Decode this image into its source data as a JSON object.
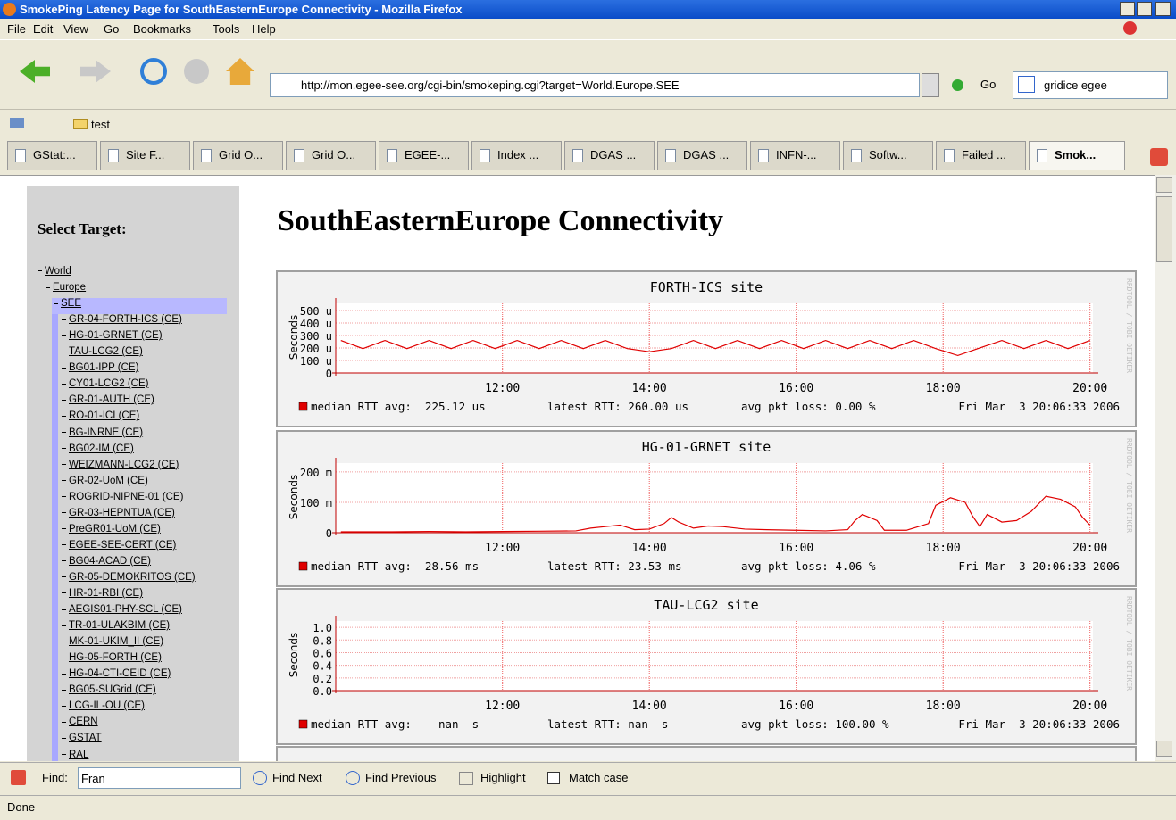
{
  "window": {
    "title": "SmokePing Latency Page for SouthEasternEurope Connectivity - Mozilla Firefox"
  },
  "menu": [
    "File",
    "Edit",
    "View",
    "Go",
    "Bookmarks",
    "Tools",
    "Help"
  ],
  "toolbar": {
    "url": "http://mon.egee-see.org/cgi-bin/smokeping.cgi?target=World.Europe.SEE",
    "go": "Go",
    "search": "gridice egee"
  },
  "bookmarks": [
    "test"
  ],
  "tabs": [
    "GStat:...",
    "Site F...",
    "Grid O...",
    "Grid O...",
    "EGEE-...",
    "Index ...",
    "DGAS ...",
    "DGAS ...",
    "INFN-...",
    "Softw...",
    "Failed ...",
    "Smok..."
  ],
  "sidebar": {
    "heading": "Select Target:",
    "tree": {
      "label": "World",
      "children": [
        {
          "label": "Europe",
          "children": [
            {
              "label": "SEE",
              "children": [
                "GR-04-FORTH-ICS (CE)",
                "HG-01-GRNET (CE)",
                "TAU-LCG2 (CE)",
                "BG01-IPP (CE)",
                "CY01-LCG2 (CE)",
                "GR-01-AUTH (CE)",
                "RO-01-ICI (CE)",
                "BG-INRNE (CE)",
                "BG02-IM (CE)",
                "WEIZMANN-LCG2 (CE)",
                "GR-02-UoM (CE)",
                "ROGRID-NIPNE-01 (CE)",
                "GR-03-HEPNTUA (CE)",
                "PreGR01-UoM (CE)",
                "EGEE-SEE-CERT (CE)",
                "BG04-ACAD (CE)",
                "GR-05-DEMOKRITOS (CE)",
                "HR-01-RBI (CE)",
                "AEGIS01-PHY-SCL (CE)",
                "TR-01-ULAKBIM (CE)",
                "MK-01-UKIM_II (CE)",
                "HG-05-FORTH (CE)",
                "HG-04-CTI-CEID (CE)",
                "BG05-SUGrid (CE)",
                "LCG-IL-OU (CE)",
                "CERN",
                "GSTAT",
                "RAL"
              ]
            }
          ]
        }
      ]
    }
  },
  "content": {
    "heading": "SouthEasternEurope Connectivity",
    "rrd_credit": "RRDTOOL / TOBI OETIKER",
    "graphs": [
      {
        "type": "line",
        "title": "FORTH-ICS site",
        "y_label": "Seconds",
        "grid": true,
        "xlim": [
          9.73,
          20.04
        ],
        "ylim": [
          0,
          557
        ],
        "xticks": [
          {
            "value": 12,
            "label": "12:00"
          },
          {
            "value": 14,
            "label": "14:00"
          },
          {
            "value": 16,
            "label": "16:00"
          },
          {
            "value": 18,
            "label": "18:00"
          },
          {
            "value": 20,
            "label": "20:00"
          }
        ],
        "yticks": [
          0,
          {
            "value": 100,
            "label": "100 u"
          },
          {
            "value": 200,
            "label": "200 u"
          },
          {
            "value": 300,
            "label": "300 u"
          },
          {
            "value": 400,
            "label": "400 u"
          },
          {
            "value": 500,
            "label": "500 u"
          }
        ],
        "x": [
          9.8,
          10.1,
          10.4,
          10.7,
          11.0,
          11.3,
          11.6,
          11.9,
          12.2,
          12.5,
          12.8,
          13.1,
          13.4,
          13.7,
          14.0,
          14.3,
          14.6,
          14.9,
          15.2,
          15.5,
          15.8,
          16.1,
          16.4,
          16.7,
          17.0,
          17.3,
          17.6,
          17.9,
          18.2,
          18.5,
          18.8,
          19.1,
          19.4,
          19.7,
          20.0
        ],
        "series": [
          {
            "color": "#e00000",
            "values": [
              260,
              195,
              260,
              195,
              260,
              195,
              260,
              195,
              260,
              195,
              260,
              195,
              260,
              195,
              170,
              195,
              260,
              195,
              260,
              195,
              260,
              195,
              260,
              195,
              260,
              195,
              260,
              195,
              140,
              200,
              260,
              195,
              260,
              195,
              260
            ]
          }
        ],
        "legend": [
          "median RTT avg:  225.12 us",
          "latest RTT: 260.00 us",
          "avg pkt loss: 0.00 %",
          "Fri Mar  3 20:06:33 2006"
        ]
      },
      {
        "type": "line",
        "title": "HG-01-GRNET site",
        "y_label": "Seconds",
        "grid": true,
        "xlim": [
          9.73,
          20.04
        ],
        "ylim": [
          0,
          229
        ],
        "xticks": [
          {
            "value": 12,
            "label": "12:00"
          },
          {
            "value": 14,
            "label": "14:00"
          },
          {
            "value": 16,
            "label": "16:00"
          },
          {
            "value": 18,
            "label": "18:00"
          },
          {
            "value": 20,
            "label": "20:00"
          }
        ],
        "yticks": [
          0,
          {
            "value": 100,
            "label": "100 m"
          },
          {
            "value": 200,
            "label": "200 m"
          }
        ],
        "x": [
          9.8,
          10.5,
          11.0,
          11.5,
          12.0,
          12.5,
          13.0,
          13.2,
          13.4,
          13.6,
          13.8,
          14.0,
          14.2,
          14.3,
          14.4,
          14.6,
          14.8,
          15.0,
          15.3,
          15.6,
          16.0,
          16.4,
          16.7,
          16.8,
          16.9,
          17.1,
          17.2,
          17.5,
          17.8,
          17.9,
          18.1,
          18.3,
          18.4,
          18.5,
          18.6,
          18.8,
          19.0,
          19.2,
          19.4,
          19.6,
          19.8,
          19.9,
          20.0
        ],
        "series": [
          {
            "color": "#e00000",
            "values": [
              3,
              3,
              4,
              3,
              4,
              5,
              6,
              15,
              20,
              25,
              10,
              12,
              30,
              50,
              35,
              15,
              22,
              20,
              12,
              10,
              8,
              6,
              10,
              40,
              60,
              40,
              8,
              8,
              30,
              90,
              115,
              100,
              55,
              20,
              60,
              35,
              40,
              70,
              120,
              110,
              85,
              50,
              25
            ]
          }
        ],
        "legend": [
          "median RTT avg:  28.56 ms",
          "latest RTT: 23.53 ms",
          "avg pkt loss: 4.06 %",
          "Fri Mar  3 20:06:33 2006"
        ]
      },
      {
        "type": "line",
        "title": "TAU-LCG2 site",
        "y_label": "Seconds",
        "grid": true,
        "xlim": [
          9.73,
          20.04
        ],
        "ylim": [
          0,
          1.1
        ],
        "xticks": [
          {
            "value": 12,
            "label": "12:00"
          },
          {
            "value": 14,
            "label": "14:00"
          },
          {
            "value": 16,
            "label": "16:00"
          },
          {
            "value": 18,
            "label": "18:00"
          },
          {
            "value": 20,
            "label": "20:00"
          }
        ],
        "yticks": [
          {
            "value": 0,
            "label": "0.0"
          },
          {
            "value": 0.2,
            "label": "0.2"
          },
          {
            "value": 0.4,
            "label": "0.4"
          },
          {
            "value": 0.6,
            "label": "0.6"
          },
          {
            "value": 0.8,
            "label": "0.8"
          },
          {
            "value": 1,
            "label": "1.0"
          }
        ],
        "x": [],
        "series": [],
        "legend": [
          "median RTT avg:    nan  s",
          "latest RTT: nan  s",
          "avg pkt loss: 100.00 %",
          "Fri Mar  3 20:06:33 2006"
        ]
      }
    ]
  },
  "findbar": {
    "label": "Find:",
    "query": "Fran",
    "next": "Find Next",
    "previous": "Find Previous",
    "highlight": "Highlight",
    "match_case": "Match case"
  },
  "status": "Done"
}
